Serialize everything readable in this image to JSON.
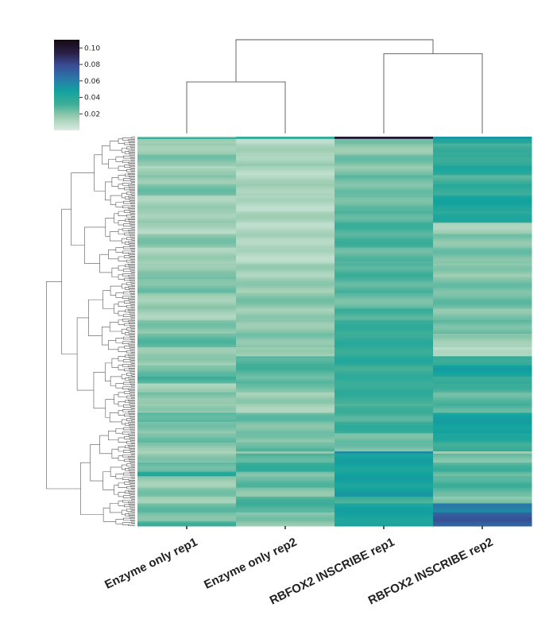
{
  "chart_data": {
    "type": "heatmap",
    "title": "",
    "columns": [
      "Enzyme only rep1",
      "Enzyme only rep2",
      "RBFOX2 INSCRIBE rep1",
      "RBFOX2 INSCRIBE rep2"
    ],
    "colorbar": {
      "ticks": [
        0.02,
        0.04,
        0.06,
        0.08,
        0.1
      ],
      "tick_labels": [
        "0.02",
        "0.04",
        "0.06",
        "0.08",
        "0.10"
      ],
      "range": [
        0.0,
        0.11
      ],
      "colormap": [
        "#d9ebe2",
        "#9dcdb2",
        "#3fae98",
        "#12a39f",
        "#2b78a8",
        "#3a4d96",
        "#2a1f45",
        "#150a14"
      ]
    },
    "column_dendrogram": {
      "merges": [
        {
          "left": 0,
          "right": 1,
          "height": 0.55
        },
        {
          "left": 2,
          "right": 3,
          "height": 0.85
        },
        {
          "left": "m0",
          "right": "m1",
          "height": 1.0
        }
      ]
    },
    "row_groups": [
      {
        "n": 1,
        "values": [
          0.018,
          0.036,
          0.106,
          0.052
        ]
      },
      {
        "n": 1,
        "values": [
          0.044,
          0.036,
          0.094,
          0.05
        ]
      },
      {
        "n": 4,
        "values": [
          0.012,
          0.01,
          0.02,
          0.044
        ]
      },
      {
        "n": 10,
        "values": [
          0.016,
          0.012,
          0.018,
          0.032
        ]
      },
      {
        "n": 10,
        "values": [
          0.02,
          0.014,
          0.022,
          0.036
        ]
      },
      {
        "n": 8,
        "values": [
          0.014,
          0.01,
          0.02,
          0.04
        ]
      },
      {
        "n": 8,
        "values": [
          0.018,
          0.012,
          0.024,
          0.03
        ]
      },
      {
        "n": 10,
        "values": [
          0.022,
          0.014,
          0.022,
          0.036
        ]
      },
      {
        "n": 14,
        "values": [
          0.014,
          0.01,
          0.024,
          0.044
        ]
      },
      {
        "n": 10,
        "values": [
          0.016,
          0.012,
          0.028,
          0.04
        ]
      },
      {
        "n": 10,
        "values": [
          0.012,
          0.01,
          0.03,
          0.014
        ]
      },
      {
        "n": 12,
        "values": [
          0.02,
          0.012,
          0.03,
          0.02
        ]
      },
      {
        "n": 14,
        "values": [
          0.014,
          0.01,
          0.026,
          0.022
        ]
      },
      {
        "n": 12,
        "values": [
          0.018,
          0.014,
          0.03,
          0.018
        ]
      },
      {
        "n": 14,
        "values": [
          0.022,
          0.016,
          0.028,
          0.022
        ]
      },
      {
        "n": 14,
        "values": [
          0.016,
          0.02,
          0.024,
          0.024
        ]
      },
      {
        "n": 10,
        "values": [
          0.014,
          0.016,
          0.03,
          0.02
        ]
      },
      {
        "n": 12,
        "values": [
          0.02,
          0.018,
          0.034,
          0.024
        ]
      },
      {
        "n": 12,
        "values": [
          0.026,
          0.02,
          0.036,
          0.016
        ]
      },
      {
        "n": 8,
        "values": [
          0.018,
          0.014,
          0.036,
          0.008
        ]
      },
      {
        "n": 8,
        "values": [
          0.016,
          0.03,
          0.038,
          0.036
        ]
      },
      {
        "n": 10,
        "values": [
          0.024,
          0.028,
          0.034,
          0.046
        ]
      },
      {
        "n": 6,
        "values": [
          0.03,
          0.026,
          0.034,
          0.036
        ]
      },
      {
        "n": 8,
        "values": [
          0.014,
          0.022,
          0.036,
          0.03
        ]
      },
      {
        "n": 10,
        "values": [
          0.02,
          0.016,
          0.034,
          0.026
        ]
      },
      {
        "n": 8,
        "values": [
          0.016,
          0.014,
          0.03,
          0.028
        ]
      },
      {
        "n": 8,
        "values": [
          0.028,
          0.024,
          0.03,
          0.046
        ]
      },
      {
        "n": 10,
        "values": [
          0.02,
          0.022,
          0.034,
          0.048
        ]
      },
      {
        "n": 8,
        "values": [
          0.024,
          0.02,
          0.024,
          0.04
        ]
      },
      {
        "n": 8,
        "values": [
          0.018,
          0.026,
          0.022,
          0.034
        ]
      },
      {
        "n": 2,
        "values": [
          0.016,
          0.014,
          0.06,
          0.012
        ]
      },
      {
        "n": 8,
        "values": [
          0.018,
          0.028,
          0.046,
          0.022
        ]
      },
      {
        "n": 8,
        "values": [
          0.026,
          0.034,
          0.046,
          0.03
        ]
      },
      {
        "n": 4,
        "values": [
          0.038,
          0.022,
          0.046,
          0.024
        ]
      },
      {
        "n": 10,
        "values": [
          0.016,
          0.026,
          0.046,
          0.03
        ]
      },
      {
        "n": 8,
        "values": [
          0.02,
          0.02,
          0.048,
          0.026
        ]
      },
      {
        "n": 6,
        "values": [
          0.016,
          0.028,
          0.032,
          0.02
        ]
      },
      {
        "n": 8,
        "values": [
          0.024,
          0.03,
          0.046,
          0.06
        ]
      },
      {
        "n": 8,
        "values": [
          0.022,
          0.02,
          0.046,
          0.074
        ]
      },
      {
        "n": 4,
        "values": [
          0.03,
          0.018,
          0.044,
          0.07
        ]
      }
    ]
  },
  "page": {
    "background": "#ffffff",
    "line_color": "#555555"
  }
}
